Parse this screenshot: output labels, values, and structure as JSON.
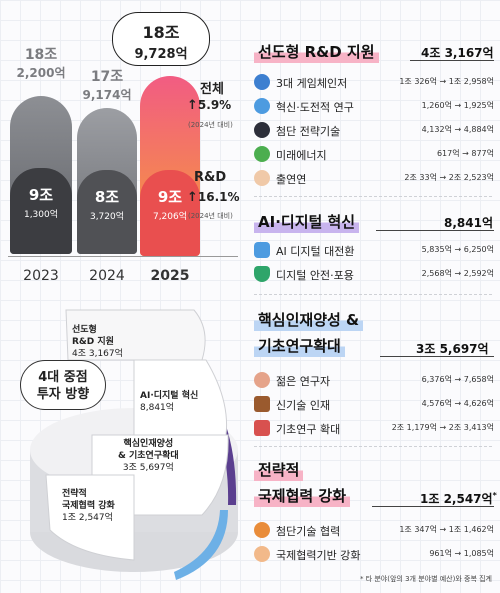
{
  "left": {
    "bars": [
      {
        "year": "2023",
        "total_big": "18조",
        "total_small": "2,200억",
        "rd_big": "9조",
        "rd_small": "1,300억"
      },
      {
        "year": "2024",
        "total_big": "17조",
        "total_small": "9,174억",
        "rd_big": "8조",
        "rd_small": "3,720억"
      },
      {
        "year": "2025",
        "total_big": "18조",
        "total_small": "9,728억",
        "rd_big": "9조",
        "rd_small": "7,206억"
      }
    ],
    "overall_label": "전체",
    "overall_pct": "5.9%",
    "overall_note": "(2024년 대비)",
    "rd_label": "R&D",
    "rd_pct": "16.1%",
    "rd_note": "(2024년 대비)"
  },
  "directions": {
    "badge_line1": "4대 중점",
    "badge_line2": "투자 방향",
    "segments": [
      {
        "name1": "선도형",
        "name2": "R&D 지원",
        "value": "4조 3,167억"
      },
      {
        "name1": "AI·디지털 혁신",
        "name2": "",
        "value": "8,841억"
      },
      {
        "name1": "핵심인재양성",
        "name2": "& 기초연구확대",
        "value": "3조 5,697억"
      },
      {
        "name1": "전략적",
        "name2": "국제협력 강화",
        "value": "1조 2,547억"
      }
    ]
  },
  "sections": [
    {
      "title": "선도형 R&D 지원",
      "amount": "4조 3,167억",
      "items": [
        {
          "label": "3대 게임체인저",
          "value": "1조 326억 → 1조 2,958억",
          "icon": "globe-icon"
        },
        {
          "label": "혁신·도전적 연구",
          "value": "1,260억 → 1,925억",
          "icon": "magnifier-icon"
        },
        {
          "label": "첨단 전략기술",
          "value": "4,132억 → 4,884억",
          "icon": "chess-knight-icon"
        },
        {
          "label": "미래에너지",
          "value": "617억 → 877억",
          "icon": "sprout-icon"
        },
        {
          "label": "출연연",
          "value": "2조 33억 → 2조 2,523억",
          "icon": "researcher-icon"
        }
      ]
    },
    {
      "title": "AI·디지털 혁신",
      "amount": "8,841억",
      "items": [
        {
          "label": "AI 디지털 대전환",
          "value": "5,835억 → 6,250억",
          "icon": "chat-bubble-icon"
        },
        {
          "label": "디지털 안전·포용",
          "value": "2,568억 → 2,592억",
          "icon": "shield-check-icon"
        }
      ]
    },
    {
      "title_line1": "핵심인재양성 &",
      "title_line2": "기초연구확대",
      "amount": "3조 5,697억",
      "items": [
        {
          "label": "젊은 연구자",
          "value": "6,376억 → 7,658억",
          "icon": "young-researcher-icon"
        },
        {
          "label": "신기술 인재",
          "value": "4,576억 → 4,626억",
          "icon": "briefcase-icon"
        },
        {
          "label": "기초연구 확대",
          "value": "2조 1,179억 → 2조 3,413억",
          "icon": "microscope-book-icon"
        }
      ]
    },
    {
      "title_line1": "전략적",
      "title_line2": "국제협력 강화",
      "amount": "1조 2,547억",
      "amount_mark": "*",
      "items": [
        {
          "label": "첨단기술 협력",
          "value": "1조 347억 → 1조 1,462억",
          "icon": "gear-globe-icon"
        },
        {
          "label": "국제협력기반 강화",
          "value": "961억 → 1,085억",
          "icon": "handshake-icon"
        }
      ]
    }
  ],
  "footnote": "* 타 분야(앞의 3개 분야별 예산)와 중복 집계",
  "colors": {
    "pink": "#f7b3c6",
    "purple": "#c8b4ee",
    "blue": "#bcd5f4",
    "bar2025": "#f25c83"
  }
}
